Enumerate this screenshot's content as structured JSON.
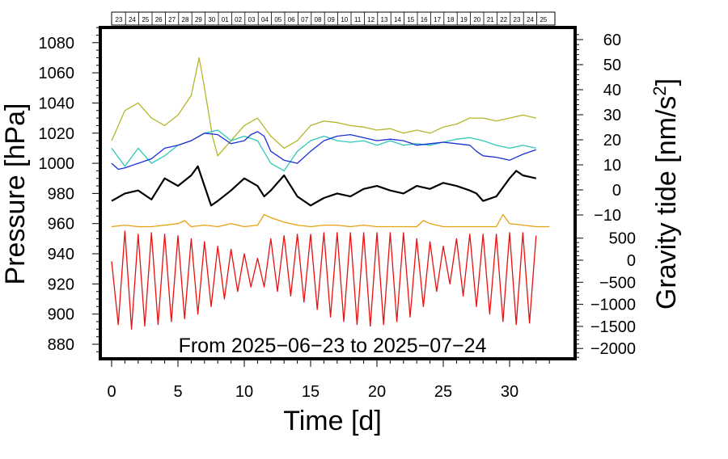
{
  "chart_data": {
    "type": "line",
    "caption": "From 2025−06−23 to 2025−07−24",
    "xlabel": "Time [d]",
    "ylabel_left": "Pressure [hPa]",
    "ylabel_right_main": "Gravity tide [nm/s",
    "ylabel_right_sup": "2",
    "ylabel_right_end": "]",
    "xlim": [
      -1,
      34
    ],
    "x_ticks": [
      "0",
      "5",
      "10",
      "15",
      "20",
      "25",
      "30"
    ],
    "ylim_left": [
      867,
      1092
    ],
    "y_ticks_left": [
      "880",
      "900",
      "920",
      "940",
      "960",
      "980",
      "1000",
      "1020",
      "1040",
      "1060",
      "1080"
    ],
    "y_ticks_right_upper": [
      "−10",
      "0",
      "10",
      "20",
      "30",
      "40",
      "50",
      "60"
    ],
    "y_ticks_right_lower": [
      "−2000",
      "−1500",
      "−1000",
      "−500",
      "0",
      "500"
    ],
    "top_day_labels": [
      "23",
      "24",
      "25",
      "26",
      "27",
      "28",
      "29",
      "30",
      "01",
      "02",
      "03",
      "04",
      "05",
      "06",
      "07",
      "08",
      "09",
      "10",
      "11",
      "12",
      "13",
      "14",
      "15",
      "16",
      "17",
      "18",
      "19",
      "20",
      "21",
      "22",
      "23",
      "24",
      "25"
    ],
    "series": [
      {
        "color": "#b5b52a",
        "x": [
          0,
          1,
          2,
          3,
          4,
          5,
          6,
          6.6,
          7,
          7.6,
          8,
          9,
          10,
          11,
          12,
          13,
          14,
          15,
          16,
          17,
          18,
          19,
          20,
          21,
          22,
          23,
          24,
          25,
          26,
          27,
          28,
          29,
          30,
          31,
          32
        ],
        "y": [
          1015,
          1035,
          1040,
          1030,
          1025,
          1032,
          1045,
          1070,
          1050,
          1018,
          1005,
          1015,
          1025,
          1030,
          1018,
          1010,
          1015,
          1025,
          1028,
          1027,
          1025,
          1024,
          1022,
          1023,
          1020,
          1022,
          1020,
          1024,
          1026,
          1030,
          1030,
          1028,
          1030,
          1032,
          1030
        ]
      },
      {
        "color": "#2ec8b8",
        "x": [
          0,
          1,
          2,
          3,
          4,
          5,
          6,
          7,
          8,
          9,
          10,
          11,
          12,
          13,
          14,
          15,
          16,
          17,
          18,
          19,
          20,
          21,
          22,
          23,
          24,
          25,
          26,
          27,
          28,
          29,
          30,
          31,
          32
        ],
        "y": [
          1010,
          998,
          1010,
          1000,
          1005,
          1012,
          1015,
          1020,
          1022,
          1015,
          1018,
          1015,
          1000,
          995,
          1008,
          1015,
          1018,
          1015,
          1014,
          1015,
          1012,
          1015,
          1012,
          1013,
          1012,
          1014,
          1016,
          1017,
          1015,
          1012,
          1010,
          1012,
          1010
        ]
      },
      {
        "color": "#1c2ed8",
        "x": [
          0,
          0.5,
          1,
          2,
          3,
          4,
          5,
          6,
          7,
          8,
          9,
          10,
          10.5,
          11,
          11.5,
          12,
          13,
          14,
          15,
          16,
          17,
          18,
          19,
          20,
          21,
          22,
          23,
          24,
          25,
          26,
          27,
          27.5,
          28,
          29,
          30,
          31,
          32
        ],
        "y": [
          1000,
          996,
          997,
          1000,
          1003,
          1010,
          1012,
          1015,
          1020,
          1019,
          1013,
          1015,
          1019,
          1021,
          1018,
          1008,
          1002,
          1000,
          1008,
          1015,
          1018,
          1019,
          1017,
          1015,
          1016,
          1015,
          1012,
          1013,
          1014,
          1013,
          1012,
          1008,
          1005,
          1004,
          1002,
          1006,
          1009
        ]
      },
      {
        "color": "#000000",
        "x": [
          0,
          1,
          2,
          3,
          4,
          5,
          6,
          6.5,
          7,
          7.5,
          8,
          9,
          10,
          11,
          11.5,
          12,
          13,
          13.5,
          14,
          15,
          16,
          17,
          18,
          19,
          20,
          21,
          22,
          23,
          24,
          25,
          26,
          27,
          27.5,
          28,
          29,
          30,
          30.5,
          31,
          32
        ],
        "y": [
          975,
          980,
          982,
          976,
          990,
          985,
          992,
          998,
          985,
          972,
          975,
          982,
          990,
          985,
          978,
          982,
          992,
          985,
          978,
          972,
          977,
          980,
          978,
          983,
          985,
          982,
          980,
          985,
          983,
          987,
          985,
          982,
          980,
          975,
          978,
          990,
          995,
          992,
          990
        ]
      },
      {
        "color": "#e8a010",
        "x": [
          0,
          1,
          2,
          3,
          4,
          5,
          5.5,
          6,
          7,
          8,
          9,
          10,
          11,
          11.5,
          12,
          13,
          14,
          15,
          16,
          17,
          18,
          19,
          20,
          21,
          22,
          23,
          23.5,
          24,
          25,
          26,
          27,
          28,
          29,
          29.5,
          30,
          31,
          32,
          33
        ],
        "y": [
          958,
          959,
          958,
          958,
          959,
          960,
          962,
          958,
          959,
          958,
          960,
          958,
          959,
          966,
          964,
          961,
          959,
          958,
          959,
          959,
          958,
          959,
          958,
          958,
          958,
          958,
          962,
          960,
          958,
          958,
          958,
          958,
          958,
          966,
          960,
          959,
          958,
          958
        ]
      },
      {
        "color": "#e81010",
        "x": [
          0,
          0.5,
          1,
          1.5,
          2,
          2.5,
          3,
          3.5,
          4,
          4.5,
          5,
          5.5,
          6,
          6.5,
          7,
          7.5,
          8,
          8.5,
          9,
          9.5,
          10,
          10.5,
          11,
          11.5,
          12,
          12.5,
          13,
          13.5,
          14,
          14.5,
          15,
          15.5,
          16,
          16.5,
          17,
          17.5,
          18,
          18.5,
          19,
          19.5,
          20,
          20.5,
          21,
          21.5,
          22,
          22.5,
          23,
          23.5,
          24,
          24.5,
          25,
          25.5,
          26,
          26.5,
          27,
          27.5,
          28,
          28.5,
          29,
          29.5,
          30,
          30.5,
          31,
          31.5,
          32
        ],
        "y": [
          935,
          893,
          955,
          890,
          953,
          892,
          954,
          893,
          953,
          895,
          952,
          897,
          950,
          900,
          948,
          905,
          945,
          910,
          943,
          915,
          940,
          918,
          937,
          918,
          950,
          915,
          952,
          912,
          953,
          908,
          953,
          903,
          954,
          898,
          954,
          895,
          954,
          893,
          954,
          892,
          954,
          893,
          954,
          895,
          954,
          898,
          950,
          905,
          948,
          915,
          945,
          920,
          950,
          912,
          953,
          905,
          953,
          900,
          953,
          895,
          954,
          893,
          954,
          894,
          952
        ]
      }
    ]
  }
}
